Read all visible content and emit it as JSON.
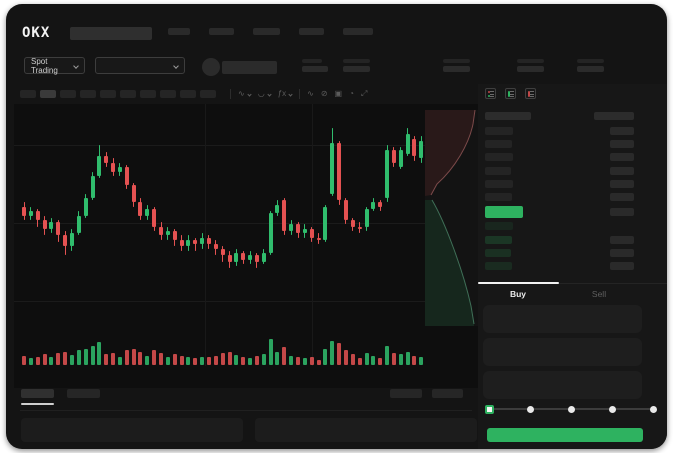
{
  "brand": {
    "logo": "OKX"
  },
  "colors": {
    "green": "#2eb260",
    "candle_green": "#30bd6d",
    "candle_red": "#e45252",
    "device_bg": "#141414",
    "chart_bg": "#0e0e0e",
    "panel_bg": "#171717"
  },
  "navbar": {
    "menu_skeleton_widths": [
      22,
      25,
      27,
      25,
      30
    ]
  },
  "market_header": {
    "market_selector_label": "Spot Trading",
    "stat_skeletons": [
      [
        20,
        26
      ],
      [
        27,
        27
      ],
      [
        27,
        27
      ],
      [
        27,
        27
      ],
      [
        27,
        27
      ]
    ]
  },
  "toolbar": {
    "timeframe_skeleton_count": 10,
    "active_timeframe_index": 1,
    "icons": [
      {
        "name": "candle-style-icon",
        "glyph": "∿",
        "chevron": true
      },
      {
        "name": "overlay-icon",
        "glyph": "◡",
        "chevron": true
      },
      {
        "name": "indicators-icon",
        "glyph": "ƒx",
        "chevron": true
      },
      {
        "name": "line-tool-icon",
        "glyph": "∿",
        "chevron": false
      },
      {
        "name": "measure-icon",
        "glyph": "⊘",
        "chevron": false
      },
      {
        "name": "snapshot-icon",
        "glyph": "▣",
        "chevron": false
      },
      {
        "name": "history-icon",
        "glyph": "◔",
        "chevron": false
      },
      {
        "name": "fullscreen-icon",
        "glyph": "⤢",
        "chevron": false
      }
    ]
  },
  "chart_data": {
    "type": "candlestick",
    "title": "",
    "xlabel": "",
    "ylabel": "",
    "note": "No axis labels are visible in the screenshot; candle OHLC values are normalized to a 0-100 price scale read from pixel positions (100 = chart top, 0 = chart bottom); v is relative volume 0-100.",
    "candles": [
      [
        56,
        52,
        58,
        50,
        35
      ],
      [
        52,
        54,
        56,
        50,
        25
      ],
      [
        54,
        50,
        55,
        47,
        30
      ],
      [
        50,
        46,
        52,
        43,
        40
      ],
      [
        46,
        49,
        51,
        44,
        28
      ],
      [
        49,
        43,
        50,
        40,
        45
      ],
      [
        43,
        38,
        45,
        34,
        50
      ],
      [
        38,
        44,
        46,
        36,
        38
      ],
      [
        44,
        52,
        54,
        43,
        55
      ],
      [
        52,
        60,
        62,
        51,
        60
      ],
      [
        60,
        70,
        72,
        59,
        70
      ],
      [
        70,
        79,
        84,
        69,
        85
      ],
      [
        79,
        76,
        81,
        74,
        40
      ],
      [
        76,
        72,
        78,
        70,
        45
      ],
      [
        72,
        74,
        76,
        70,
        30
      ],
      [
        74,
        66,
        75,
        64,
        55
      ],
      [
        66,
        58,
        67,
        56,
        60
      ],
      [
        58,
        52,
        60,
        50,
        50
      ],
      [
        52,
        55,
        57,
        50,
        35
      ],
      [
        55,
        47,
        56,
        45,
        55
      ],
      [
        47,
        43,
        49,
        41,
        45
      ],
      [
        43,
        45,
        47,
        41,
        30
      ],
      [
        45,
        41,
        46,
        38,
        40
      ],
      [
        41,
        38,
        43,
        36,
        35
      ],
      [
        38,
        41,
        43,
        36,
        28
      ],
      [
        41,
        39,
        42,
        36,
        25
      ],
      [
        39,
        42,
        44,
        37,
        30
      ],
      [
        42,
        39,
        43,
        37,
        28
      ],
      [
        39,
        37,
        41,
        34,
        32
      ],
      [
        37,
        34,
        38,
        31,
        45
      ],
      [
        34,
        31,
        36,
        28,
        50
      ],
      [
        31,
        35,
        37,
        29,
        38
      ],
      [
        35,
        32,
        36,
        30,
        30
      ],
      [
        32,
        34,
        36,
        30,
        25
      ],
      [
        34,
        31,
        35,
        28,
        35
      ],
      [
        31,
        35,
        37,
        30,
        40
      ],
      [
        35,
        53,
        54,
        34,
        95
      ],
      [
        53,
        57,
        59,
        52,
        50
      ],
      [
        59,
        45,
        60,
        43,
        65
      ],
      [
        45,
        48,
        50,
        43,
        35
      ],
      [
        48,
        44,
        49,
        42,
        30
      ],
      [
        44,
        46,
        48,
        42,
        25
      ],
      [
        46,
        42,
        47,
        40,
        28
      ],
      [
        42,
        41,
        44,
        39,
        20
      ],
      [
        41,
        56,
        57,
        40,
        60
      ],
      [
        62,
        85,
        92,
        61,
        90
      ],
      [
        85,
        59,
        86,
        57,
        80
      ],
      [
        59,
        50,
        60,
        48,
        55
      ],
      [
        50,
        47,
        51,
        45,
        40
      ],
      [
        47,
        46,
        49,
        44,
        25
      ],
      [
        47,
        55,
        56,
        45,
        45
      ],
      [
        55,
        58,
        60,
        54,
        35
      ],
      [
        58,
        56,
        59,
        54,
        25
      ],
      [
        60,
        82,
        84,
        58,
        70
      ],
      [
        82,
        76,
        83,
        74,
        45
      ],
      [
        74,
        82,
        83,
        73,
        40
      ],
      [
        80,
        89,
        92,
        79,
        50
      ],
      [
        87,
        79,
        88,
        77,
        35
      ],
      [
        78,
        86,
        88,
        76,
        30
      ]
    ]
  },
  "depth_chart": {
    "type": "area",
    "orientation": "vertical",
    "series": [
      {
        "name": "asks",
        "color": "#5e3a3c"
      },
      {
        "name": "bids",
        "color": "#2b5c45"
      }
    ]
  },
  "orderbook": {
    "view_icons": [
      "orderbook-combined-view-icon",
      "orderbook-bids-view-icon",
      "orderbook-asks-view-icon"
    ],
    "ask_rows": [
      [
        28,
        24
      ],
      [
        27,
        24
      ],
      [
        28,
        24
      ],
      [
        26,
        24
      ],
      [
        28,
        24
      ],
      [
        27,
        24
      ]
    ],
    "last_price_row": {
      "highlight": "#2eb260",
      "amount_skeleton_w": 24
    },
    "bid_rows": [
      [
        28,
        0
      ],
      [
        27,
        24
      ],
      [
        26,
        24
      ],
      [
        27,
        24
      ]
    ],
    "bid_row_alphas": [
      0.1,
      0.2,
      0.16,
      0.13
    ]
  },
  "trade_panel": {
    "tabs": [
      {
        "label": "Buy",
        "active": true
      },
      {
        "label": "Sell",
        "active": false
      }
    ],
    "field_count": 3,
    "slider": {
      "steps": 5,
      "active_index": 0
    },
    "submit_color": "#2eb260"
  },
  "bottom_panel": {
    "tab_skeleton_widths": [
      33,
      33
    ],
    "right_skeleton_widths": [
      32,
      31
    ],
    "content_block_count": 2
  }
}
